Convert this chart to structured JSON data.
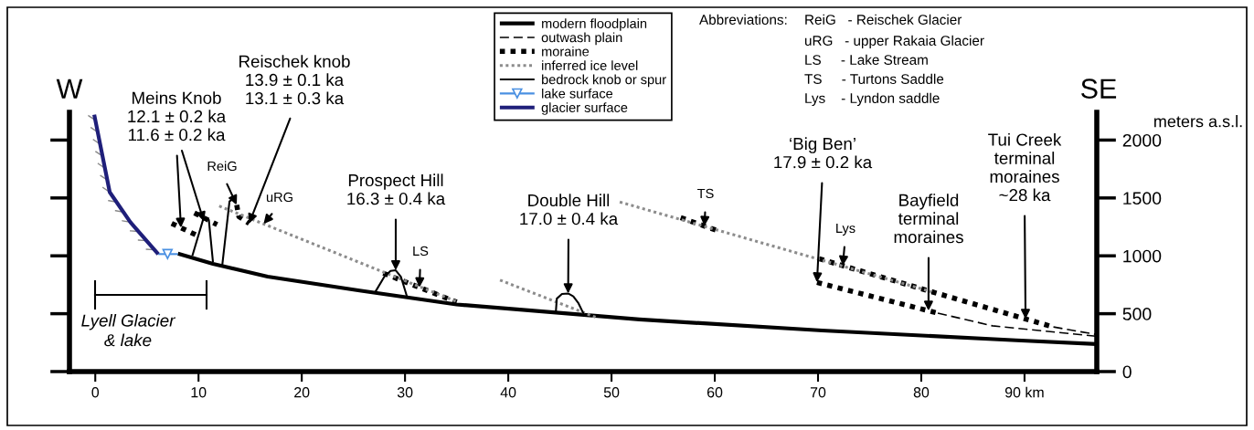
{
  "chart_data": {
    "type": "line",
    "ylabel": "meters a.s.l.",
    "xlim": [
      -2.5,
      97
    ],
    "ylim": [
      0,
      2240
    ],
    "xticks": [
      0,
      10,
      20,
      30,
      40,
      50,
      60,
      70,
      80,
      {
        "value": 90,
        "label": "90 km"
      }
    ],
    "yticks": [
      0,
      500,
      1000,
      1500,
      2000
    ],
    "legend": "top",
    "series": [
      {
        "name": "modern floodplain",
        "color": "#000000",
        "line_style": "solid",
        "x": [
          8.0,
          11.4,
          16.7,
          25.6,
          35,
          52.7,
          70.4,
          89.2,
          97
        ],
        "values": [
          1020,
          930,
          820,
          700,
          580,
          450,
          355,
          270,
          237
        ]
      },
      {
        "name": "outwash plain",
        "color": "#000000",
        "line_style": "dashed",
        "x": [
          92.8,
          97,
          null,
          81.6,
          86.9,
          97
        ],
        "values": [
          385,
          320,
          null,
          505,
          395,
          305
        ]
      },
      {
        "name": "moraine",
        "color": "#000000",
        "line_style": "dotted",
        "x": [
          7.4,
          10.0,
          null,
          9.6,
          11.8,
          null,
          13.7,
          13.9,
          14.9,
          null,
          27.9,
          35.0,
          null,
          56.7,
          60.5,
          null,
          70.1,
          81.0,
          92.8,
          null,
          69.9,
          81.6
        ],
        "values": [
          1280,
          1170,
          null,
          1370,
          1270,
          null,
          1440,
          1340,
          1280,
          null,
          850,
          600,
          null,
          1330,
          1210,
          null,
          975,
          690,
          385,
          null,
          770,
          505
        ]
      },
      {
        "name": "inferred ice level",
        "color": "#8c8c8c",
        "line_style": "dotted",
        "x": [
          12.0,
          35.0,
          null,
          39.2,
          48.6,
          null,
          50.8,
          81.0
        ],
        "values": [
          1430,
          605,
          null,
          790,
          465,
          null,
          1465,
          690
        ]
      },
      {
        "name": "bedrock knob or spur",
        "color": "#000000",
        "line_style": "solid",
        "x": [
          9.4,
          10.5,
          11.0,
          11.4,
          null,
          12.3,
          13.0,
          13.3,
          null,
          27.1,
          28.0,
          28.6,
          29.1,
          29.6,
          30.2,
          null,
          44.6,
          44.7,
          45.2,
          45.8,
          46.3,
          46.8,
          47.4
        ],
        "values": [
          1000,
          1330,
          1310,
          945,
          null,
          920,
          1470,
          1490,
          null,
          685,
          820,
          870,
          875,
          820,
          645,
          null,
          505,
          630,
          670,
          675,
          650,
          590,
          480
        ]
      },
      {
        "name": "lake surface",
        "color": "#4a90e2",
        "line_style": "solid",
        "x": [
          6.1,
          7.0,
          8.0
        ],
        "values": [
          1015,
          1015,
          1015
        ]
      },
      {
        "name": "glacier surface",
        "color": "#1f1f7a",
        "line_style": "solid",
        "x": [
          -0.1,
          1.4,
          3.4,
          6.1
        ],
        "values": [
          2220,
          1550,
          1290,
          1015
        ]
      }
    ],
    "annotations": [
      "Lyell Glacier\n& lake",
      "W",
      "SE",
      "Abbreviations:",
      "ReiG   - Reischek Glacier",
      "uRG   - upper Rakaia Glacier",
      "LS     - Lake Stream",
      "TS     - Turtons Saddle",
      "Lys    - Lyndon saddle",
      {
        "text": "Meins Knob\n12.1 ± 0.2 ka\n11.6 ± 0.2 ka",
        "x": 8.3,
        "y": 1242
      },
      {
        "text": "Reischek knob\n13.9 ± 0.1 ka\n13.1 ± 0.3 ka",
        "x": 14.9,
        "y": 1280
      },
      {
        "text": "ReiG",
        "x": 13.7,
        "y": 1440
      },
      {
        "text": "uRG",
        "x": 16.3,
        "y": 1276
      },
      {
        "text": "Prospect Hill\n16.3 ± 0.4 ka",
        "x": 29.1,
        "y": 875
      },
      {
        "text": "LS",
        "x": 31.4,
        "y": 727
      },
      {
        "text": "Double Hill\n17.0 ± 0.4 ka",
        "x": 45.8,
        "y": 675
      },
      {
        "text": "TS",
        "x": 59.0,
        "y": 1257
      },
      {
        "text": "‘Big Ben’\n17.9 ± 0.2 ka",
        "x": 69.9,
        "y": 770
      },
      {
        "text": "Lys",
        "x": 72.4,
        "y": 915
      },
      {
        "text": "Bayfield\nterminal\nmoraines",
        "x": 80.7,
        "y": 525
      },
      {
        "text": "Tui Creek\nterminal\nmoraines\n~28 ka",
        "x": 90.1,
        "y": 455
      }
    ]
  }
}
